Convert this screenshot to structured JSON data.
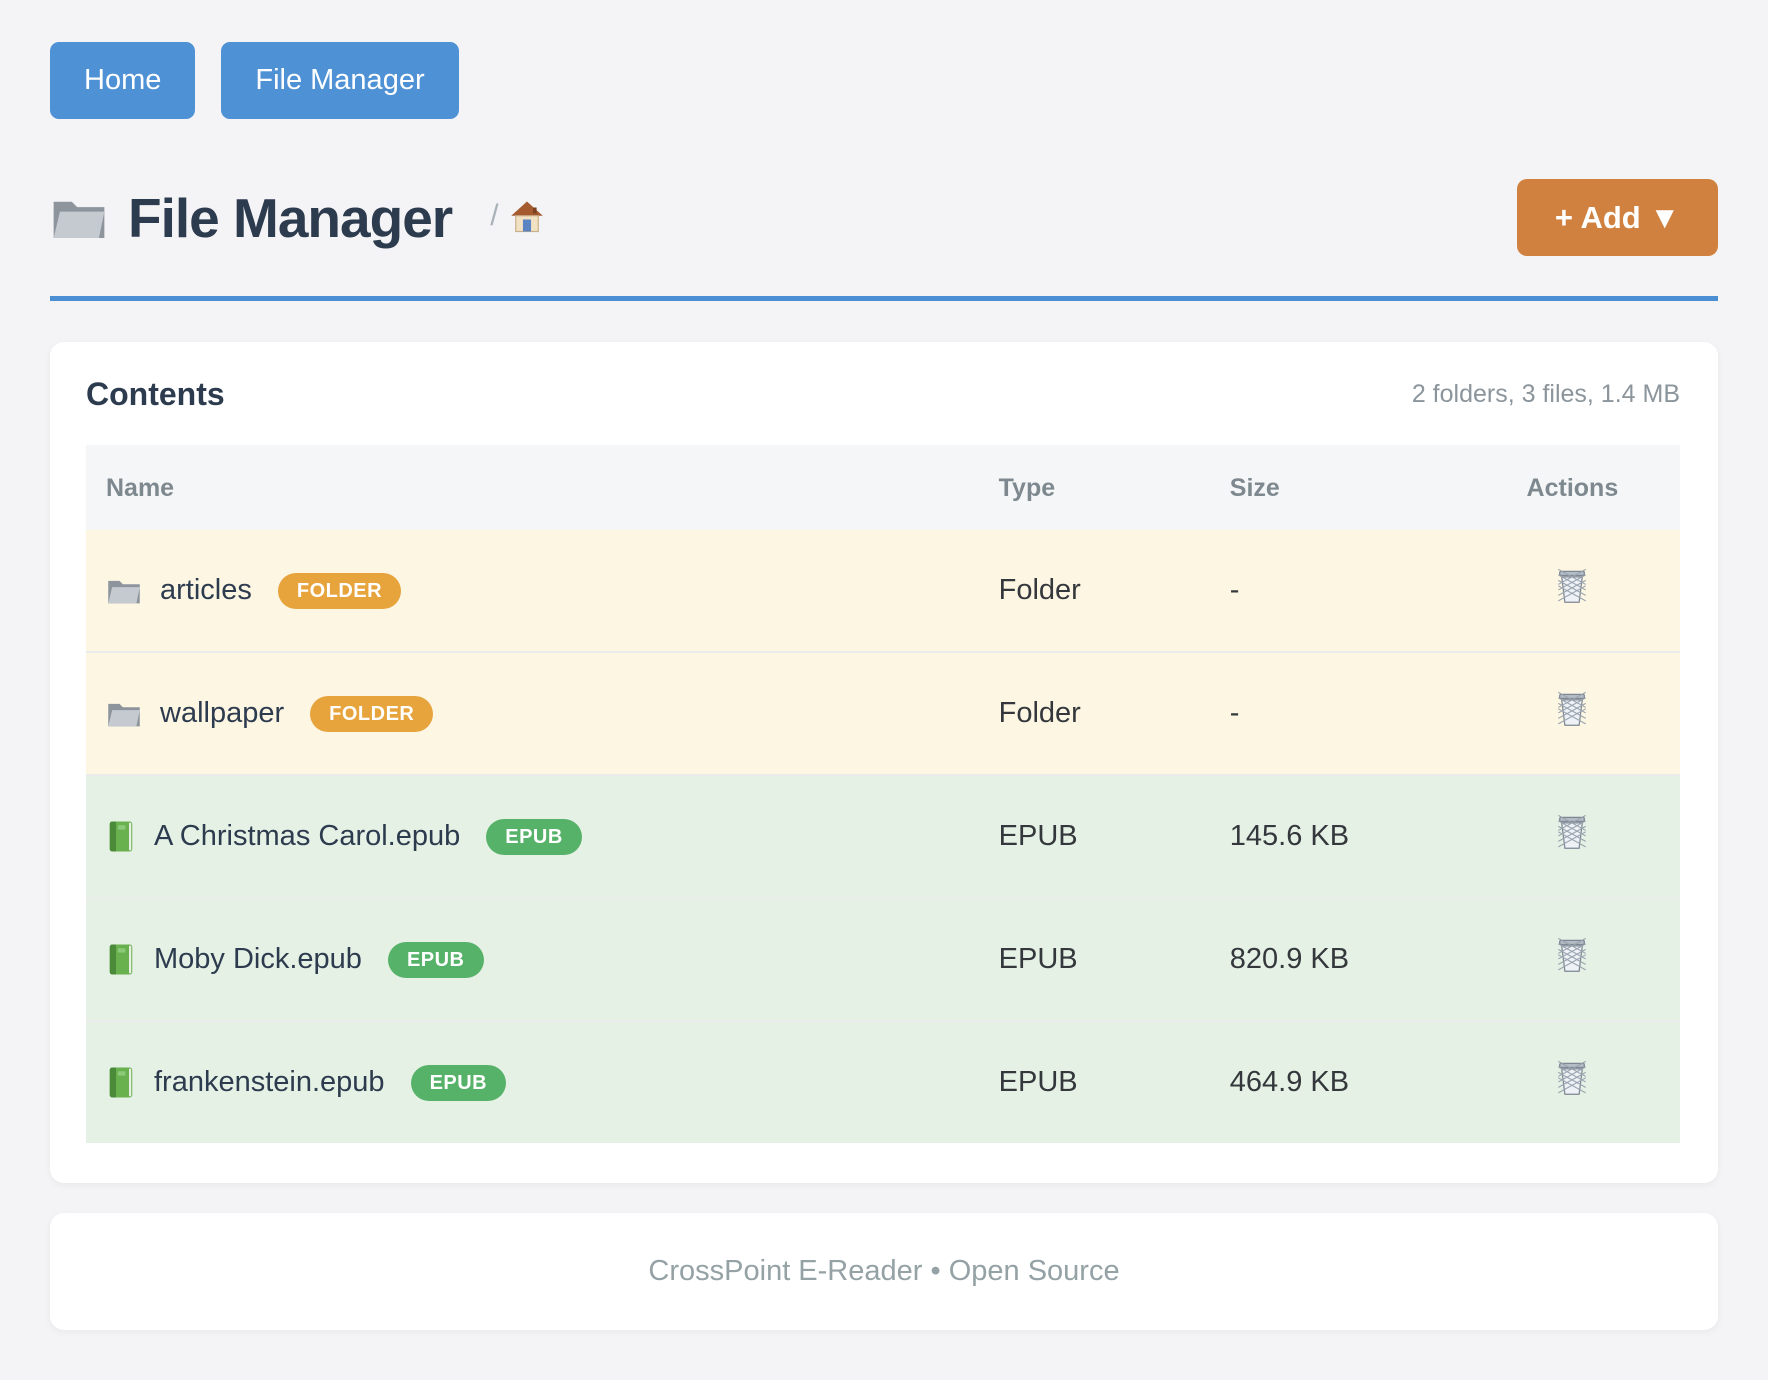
{
  "nav": {
    "buttons": [
      {
        "label": "Home"
      },
      {
        "label": "File Manager"
      }
    ]
  },
  "header": {
    "title": "File Manager",
    "title_icon": "folder-icon",
    "breadcrumb_separator": "/",
    "breadcrumb_home_icon": "house-icon",
    "add_button_label": "+ Add ▼"
  },
  "content_card": {
    "title": "Contents",
    "summary": "2 folders, 3 files, 1.4 MB",
    "table": {
      "columns": [
        "Name",
        "Type",
        "Size",
        "Actions"
      ],
      "rows": [
        {
          "name": "articles",
          "badge": "FOLDER",
          "type": "Folder",
          "size": "-",
          "kind": "folder",
          "icon": "folder-icon",
          "action_icon": "trash-icon"
        },
        {
          "name": "wallpaper",
          "badge": "FOLDER",
          "type": "Folder",
          "size": "-",
          "kind": "folder",
          "icon": "folder-icon",
          "action_icon": "trash-icon"
        },
        {
          "name": "A Christmas Carol.epub",
          "badge": "EPUB",
          "type": "EPUB",
          "size": "145.6 KB",
          "kind": "epub",
          "icon": "book-icon",
          "action_icon": "trash-icon"
        },
        {
          "name": "Moby Dick.epub",
          "badge": "EPUB",
          "type": "EPUB",
          "size": "820.9 KB",
          "kind": "epub",
          "icon": "book-icon",
          "action_icon": "trash-icon"
        },
        {
          "name": "frankenstein.epub",
          "badge": "EPUB",
          "type": "EPUB",
          "size": "464.9 KB",
          "kind": "epub",
          "icon": "book-icon",
          "action_icon": "trash-icon"
        }
      ]
    }
  },
  "footer": {
    "text": "CrossPoint E-Reader • Open Source"
  },
  "colors": {
    "accent_blue": "#4e91d5",
    "hr_blue": "#4a8fd3",
    "accent_orange": "#d0813f",
    "badge_folder": "#e7a33c",
    "badge_epub": "#57b269",
    "row_folder_bg": "#fdf6e3",
    "row_epub_bg": "#e5f1e5",
    "title_color": "#2d3b4e",
    "page_bg": "#f4f4f6"
  }
}
